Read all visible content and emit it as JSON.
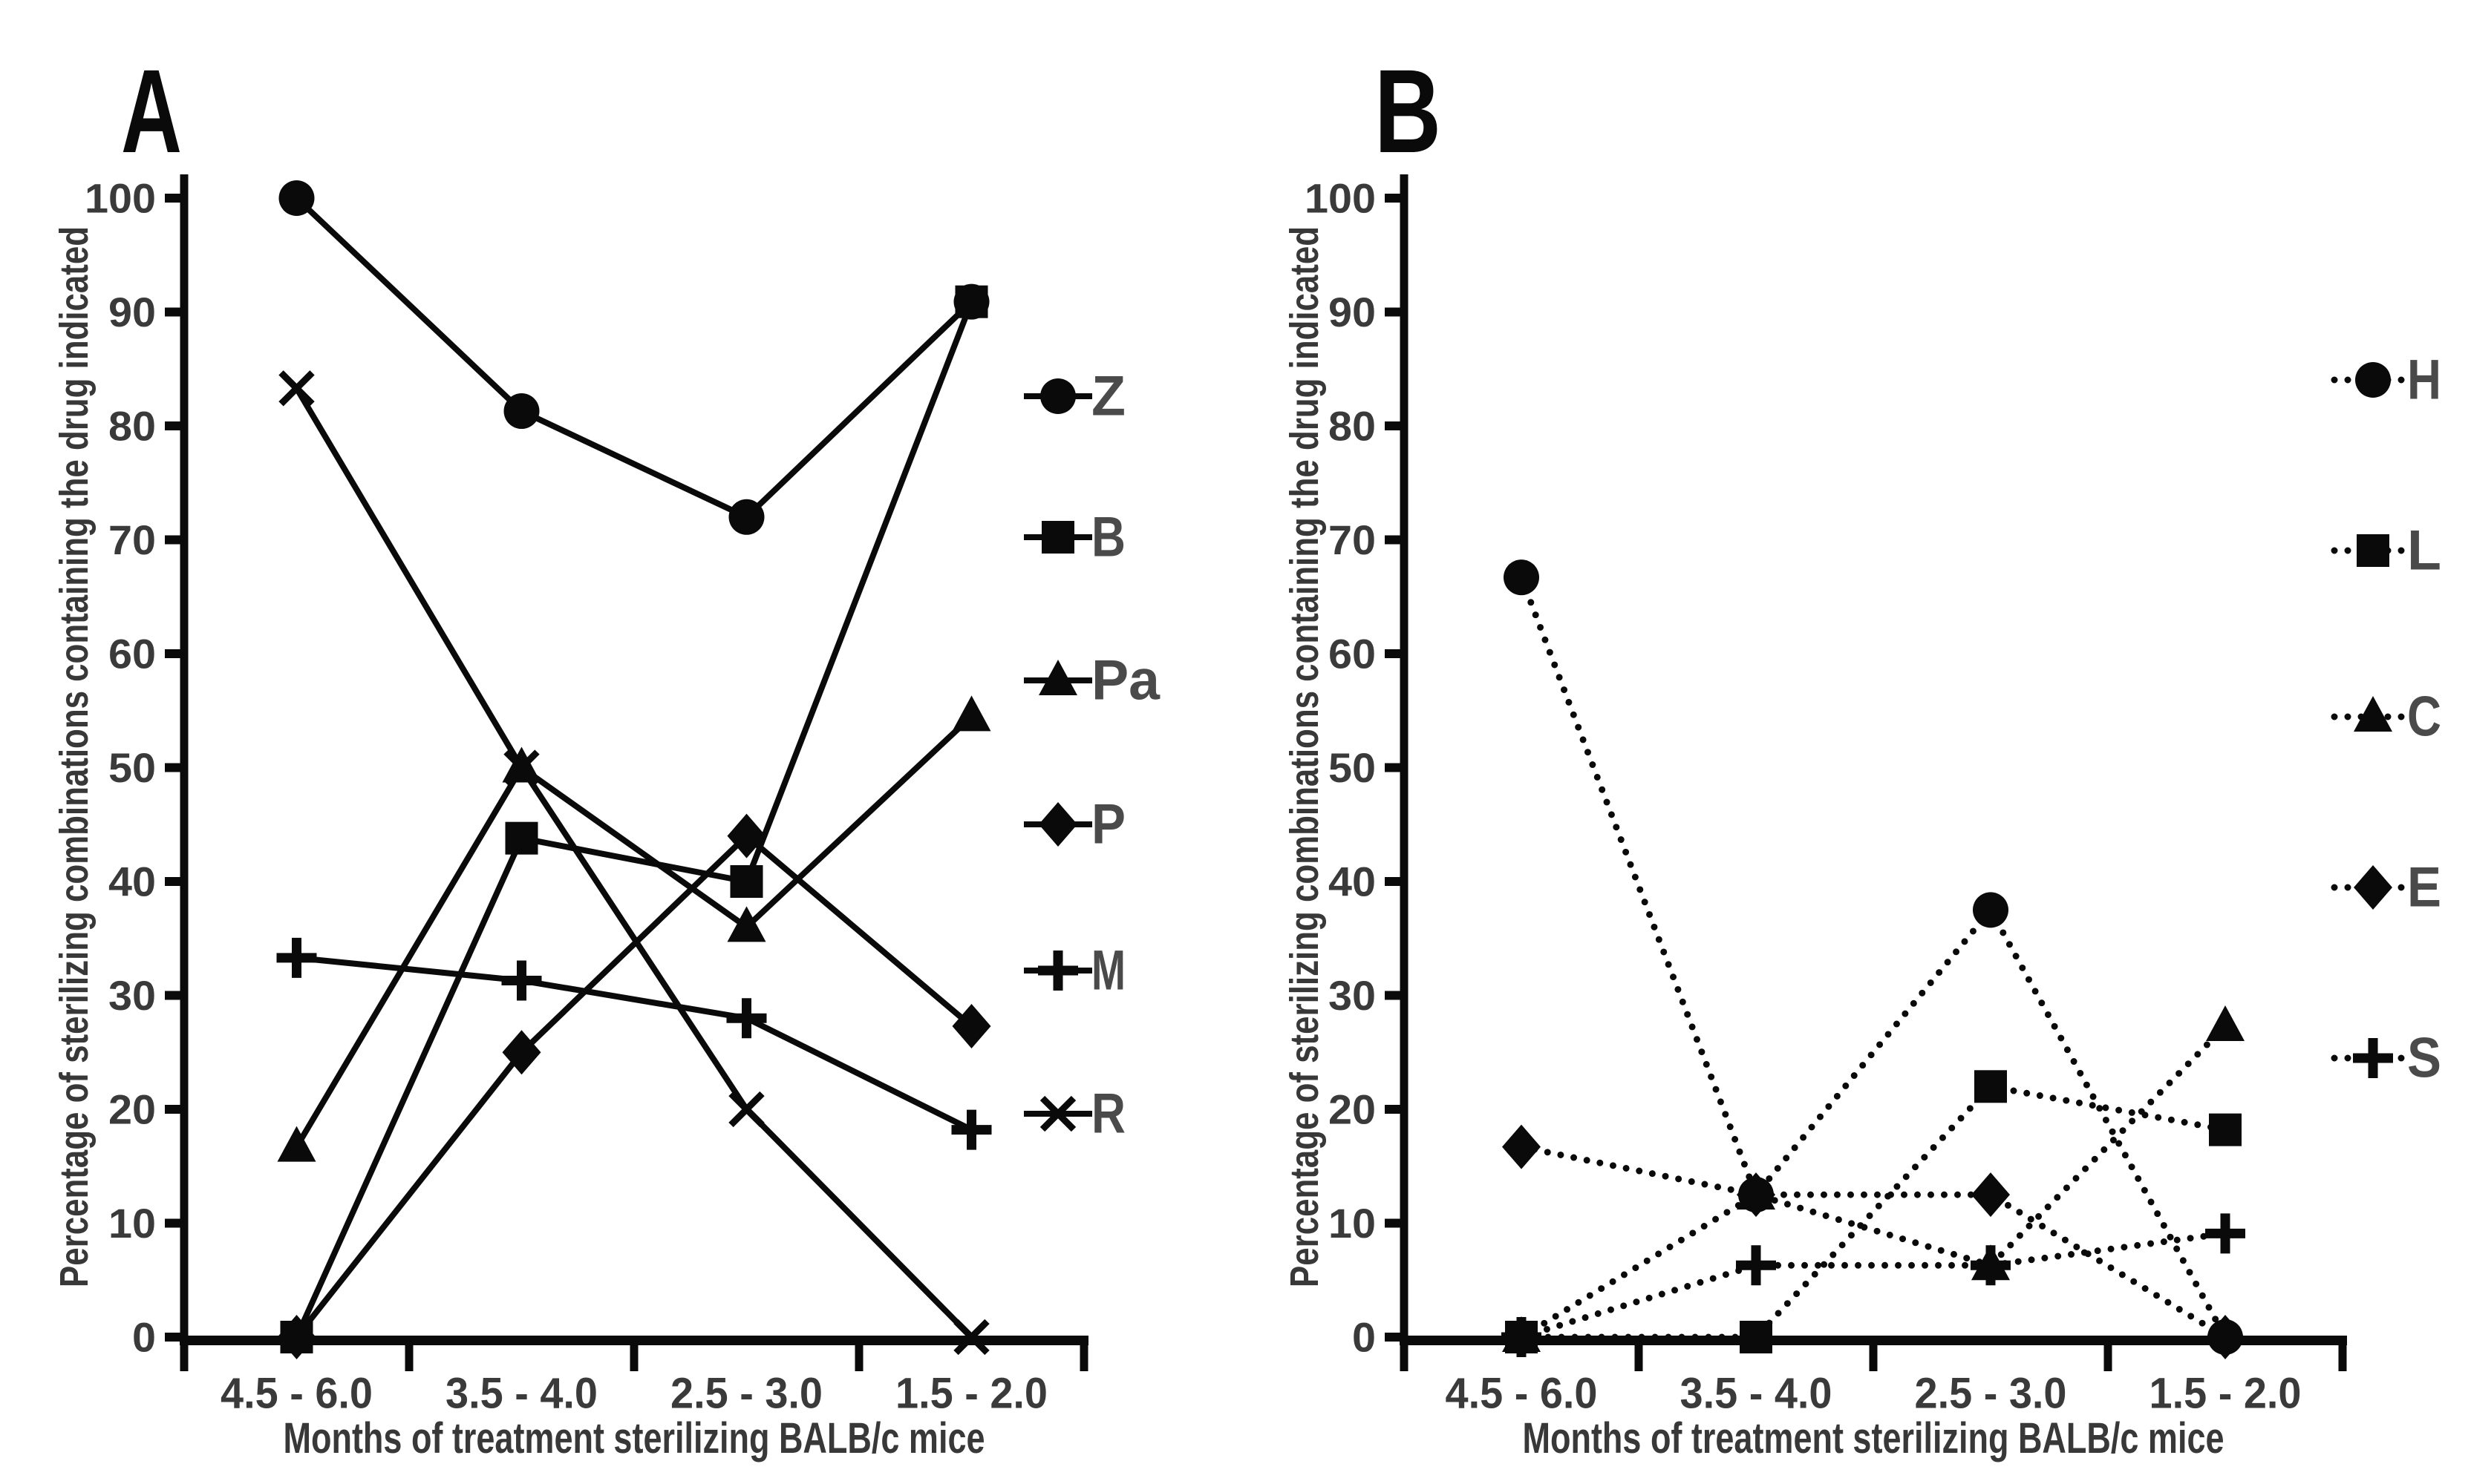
{
  "figure": {
    "background": "#ffffff",
    "ink": "#0a0a0a",
    "tick_text_color": "#3a3a3a",
    "title_text_color": "#383838",
    "legend_text_color": "#4a4a4a"
  },
  "chart_data": [
    {
      "type": "line",
      "panel_label": "A",
      "line_style": "solid",
      "title": "",
      "xlabel": "Months of treatment sterilizing BALB/c mice",
      "ylabel": "Percentage of sterilizing combinations containing the drug indicated",
      "categories": [
        "4.5 - 6.0",
        "3.5 - 4.0",
        "2.5 - 3.0",
        "1.5 - 2.0"
      ],
      "y_ticks": [
        0,
        10,
        20,
        30,
        40,
        50,
        60,
        70,
        80,
        90,
        100
      ],
      "ylim": [
        0,
        100
      ],
      "grid": false,
      "legend_position": "right",
      "series": [
        {
          "name": "Z",
          "marker": "circle",
          "values": [
            100,
            81.3,
            72,
            90.9
          ]
        },
        {
          "name": "B",
          "marker": "square",
          "values": [
            0,
            43.8,
            40,
            90.9
          ]
        },
        {
          "name": "Pa",
          "marker": "triangle",
          "values": [
            16.7,
            50,
            36,
            54.5
          ]
        },
        {
          "name": "P",
          "marker": "diamond",
          "values": [
            0,
            25,
            44,
            27.3
          ]
        },
        {
          "name": "M",
          "marker": "plus",
          "values": [
            33.3,
            31.3,
            28,
            18.2
          ]
        },
        {
          "name": "R",
          "marker": "x",
          "values": [
            83.3,
            50,
            20,
            0
          ]
        }
      ]
    },
    {
      "type": "line",
      "panel_label": "B",
      "line_style": "dotted",
      "title": "",
      "xlabel": "Months of treatment sterilizing BALB/c mice",
      "ylabel": "Percentage of sterilizing combinations  containing the drug indicated",
      "categories": [
        "4.5 - 6.0",
        "3.5 - 4.0",
        "2.5 - 3.0",
        "1.5 - 2.0"
      ],
      "y_ticks": [
        0,
        10,
        20,
        30,
        40,
        50,
        60,
        70,
        80,
        90,
        100
      ],
      "ylim": [
        0,
        100
      ],
      "grid": false,
      "legend_position": "right",
      "series": [
        {
          "name": "H",
          "marker": "circle",
          "values": [
            66.7,
            12.5,
            37.5,
            0
          ]
        },
        {
          "name": "L",
          "marker": "square",
          "values": [
            0,
            0,
            22,
            18.2
          ]
        },
        {
          "name": "C",
          "marker": "triangle",
          "values": [
            0,
            12.5,
            6.3,
            27.3
          ]
        },
        {
          "name": "E",
          "marker": "diamond",
          "values": [
            16.7,
            12.5,
            12.5,
            0
          ]
        },
        {
          "name": "S",
          "marker": "plus",
          "values": [
            0,
            6.3,
            6.3,
            9.1
          ]
        }
      ]
    }
  ]
}
